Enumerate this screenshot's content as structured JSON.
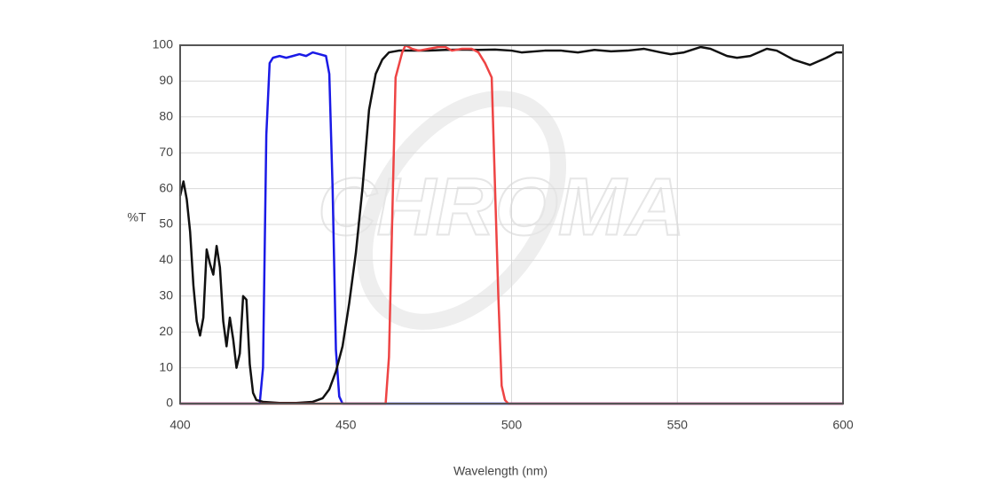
{
  "chart_data": {
    "type": "line",
    "watermark": "CHROMA",
    "y_label": "%T",
    "x_label": "Wavelength (nm)",
    "xlim": [
      400,
      600
    ],
    "xticks": [
      400,
      450,
      500,
      550,
      600
    ],
    "ylim": [
      0,
      100
    ],
    "yticks": [
      0,
      10,
      20,
      30,
      40,
      50,
      60,
      70,
      80,
      90,
      100
    ],
    "grid": true,
    "series": [
      {
        "color": "#1a1ae6",
        "x": [
          400,
          424,
          425,
          426,
          427,
          428,
          430,
          432,
          434,
          436,
          438,
          440,
          442,
          444,
          445,
          446,
          447,
          448,
          449,
          500,
          600
        ],
        "values": [
          0,
          0,
          10,
          75,
          95,
          96.5,
          97,
          96.5,
          97,
          97.5,
          97,
          98,
          97.5,
          97,
          92,
          60,
          15,
          2,
          0,
          0,
          0
        ]
      },
      {
        "color": "#111111",
        "x": [
          400,
          401,
          402,
          403,
          404,
          405,
          406,
          407,
          408,
          409,
          410,
          411,
          412,
          413,
          414,
          415,
          416,
          417,
          418,
          419,
          420,
          421,
          422,
          423,
          425,
          430,
          435,
          440,
          443,
          445,
          447,
          449,
          451,
          453,
          455,
          457,
          459,
          461,
          463,
          466,
          470,
          475,
          480,
          485,
          490,
          495,
          500,
          503,
          510,
          515,
          520,
          525,
          530,
          535,
          540,
          545,
          548,
          552,
          557,
          560,
          565,
          568,
          572,
          577,
          580,
          585,
          590,
          595,
          598,
          600
        ],
        "values": [
          58,
          62,
          57,
          48,
          33,
          23,
          19,
          24,
          43,
          39,
          36,
          44,
          38,
          23,
          16,
          24,
          18,
          10,
          14,
          30,
          29,
          11,
          3,
          1,
          0.5,
          0.2,
          0.2,
          0.5,
          1.5,
          4,
          9,
          16,
          28,
          42,
          60,
          82,
          92,
          96,
          98,
          98.5,
          98.5,
          98.5,
          98.7,
          98.8,
          98.7,
          98.8,
          98.5,
          98,
          98.5,
          98.5,
          98,
          98.7,
          98.3,
          98.5,
          99,
          98,
          97.5,
          98,
          99.5,
          99,
          97,
          96.5,
          97,
          99,
          98.5,
          96,
          94.5,
          96.5,
          98,
          98
        ]
      },
      {
        "color": "#ee4444",
        "x": [
          400,
          462,
          463,
          465,
          467,
          468,
          470,
          472,
          475,
          478,
          480,
          482,
          485,
          488,
          490,
          492,
          494,
          496,
          497,
          498,
          499,
          600
        ],
        "values": [
          0,
          0,
          13,
          91,
          98,
          100,
          99,
          98.5,
          99,
          99.5,
          99.5,
          98.5,
          99,
          99,
          98,
          95,
          91,
          30,
          5,
          1,
          0,
          0
        ]
      }
    ]
  }
}
